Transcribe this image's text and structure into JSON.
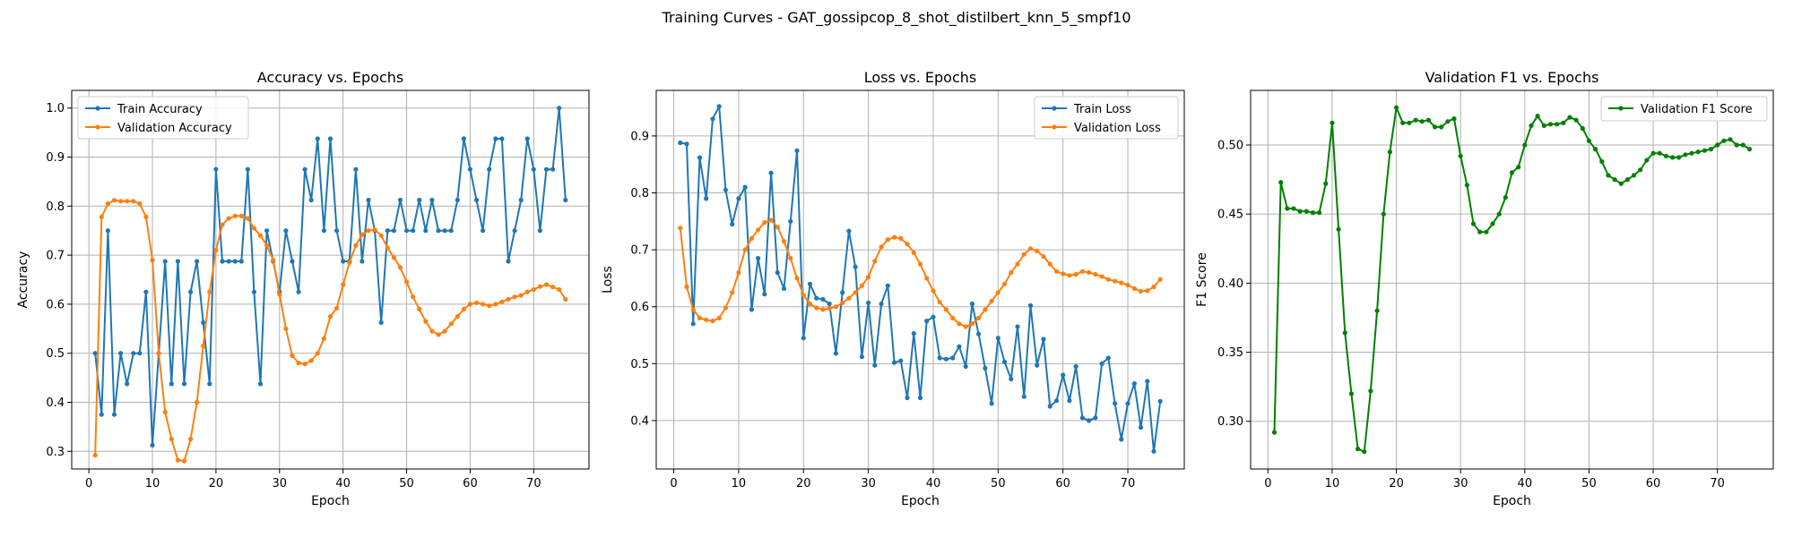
{
  "figure": {
    "suptitle": "Training Curves - GAT_gossipcop_8_shot_distilbert_knn_5_smpf10"
  },
  "chart_data": [
    {
      "type": "line",
      "title": "Accuracy vs. Epochs",
      "xlabel": "Epoch",
      "ylabel": "Accuracy",
      "xlim": [
        -2.7,
        78.7
      ],
      "ylim": [
        0.264,
        1.036
      ],
      "xticks": [
        0,
        10,
        20,
        30,
        40,
        50,
        60,
        70
      ],
      "yticks": [
        0.3,
        0.4,
        0.5,
        0.6,
        0.7,
        0.8,
        0.9,
        1.0
      ],
      "grid": true,
      "legend": "top-left",
      "x": [
        1,
        2,
        3,
        4,
        5,
        6,
        7,
        8,
        9,
        10,
        11,
        12,
        13,
        14,
        15,
        16,
        17,
        18,
        19,
        20,
        21,
        22,
        23,
        24,
        25,
        26,
        27,
        28,
        29,
        30,
        31,
        32,
        33,
        34,
        35,
        36,
        37,
        38,
        39,
        40,
        41,
        42,
        43,
        44,
        45,
        46,
        47,
        48,
        49,
        50,
        51,
        52,
        53,
        54,
        55,
        56,
        57,
        58,
        59,
        60,
        61,
        62,
        63,
        64,
        65,
        66,
        67,
        68,
        69,
        70,
        71,
        72,
        73,
        74,
        75
      ],
      "series": [
        {
          "name": "Train Accuracy",
          "color": "#1f77b4",
          "values": [
            0.5,
            0.375,
            0.75,
            0.375,
            0.5,
            0.4375,
            0.5,
            0.5,
            0.625,
            0.3125,
            0.5,
            0.6875,
            0.4375,
            0.6875,
            0.4375,
            0.625,
            0.6875,
            0.5625,
            0.4375,
            0.875,
            0.6875,
            0.6875,
            0.6875,
            0.6875,
            0.875,
            0.625,
            0.4375,
            0.75,
            0.6875,
            0.625,
            0.75,
            0.6875,
            0.625,
            0.875,
            0.8125,
            0.9375,
            0.75,
            0.9375,
            0.75,
            0.6875,
            0.6875,
            0.875,
            0.6875,
            0.8125,
            0.75,
            0.5625,
            0.75,
            0.75,
            0.8125,
            0.75,
            0.75,
            0.8125,
            0.75,
            0.8125,
            0.75,
            0.75,
            0.75,
            0.8125,
            0.9375,
            0.875,
            0.8125,
            0.75,
            0.875,
            0.9375,
            0.9375,
            0.6875,
            0.75,
            0.8125,
            0.9375,
            0.875,
            0.75,
            0.875,
            0.875,
            1.0,
            0.8125
          ]
        },
        {
          "name": "Validation Accuracy",
          "color": "#ff7f0e",
          "values": [
            0.292,
            0.778,
            0.805,
            0.812,
            0.81,
            0.81,
            0.81,
            0.805,
            0.778,
            0.69,
            0.5,
            0.38,
            0.325,
            0.282,
            0.28,
            0.325,
            0.4,
            0.515,
            0.625,
            0.71,
            0.762,
            0.775,
            0.78,
            0.78,
            0.775,
            0.755,
            0.74,
            0.72,
            0.69,
            0.62,
            0.55,
            0.495,
            0.48,
            0.478,
            0.485,
            0.5,
            0.53,
            0.575,
            0.592,
            0.64,
            0.685,
            0.72,
            0.742,
            0.75,
            0.752,
            0.74,
            0.715,
            0.695,
            0.675,
            0.645,
            0.615,
            0.59,
            0.565,
            0.545,
            0.538,
            0.545,
            0.56,
            0.575,
            0.59,
            0.6,
            0.603,
            0.6,
            0.597,
            0.6,
            0.605,
            0.61,
            0.615,
            0.618,
            0.625,
            0.63,
            0.636,
            0.64,
            0.635,
            0.63,
            0.61
          ]
        }
      ]
    },
    {
      "type": "line",
      "title": "Loss vs. Epochs",
      "xlabel": "Epoch",
      "ylabel": "Loss",
      "xlim": [
        -2.7,
        78.7
      ],
      "ylim": [
        0.315,
        0.98
      ],
      "xticks": [
        0,
        10,
        20,
        30,
        40,
        50,
        60,
        70
      ],
      "yticks": [
        0.4,
        0.5,
        0.6,
        0.7,
        0.8,
        0.9
      ],
      "grid": true,
      "legend": "top-right",
      "x": [
        1,
        2,
        3,
        4,
        5,
        6,
        7,
        8,
        9,
        10,
        11,
        12,
        13,
        14,
        15,
        16,
        17,
        18,
        19,
        20,
        21,
        22,
        23,
        24,
        25,
        26,
        27,
        28,
        29,
        30,
        31,
        32,
        33,
        34,
        35,
        36,
        37,
        38,
        39,
        40,
        41,
        42,
        43,
        44,
        45,
        46,
        47,
        48,
        49,
        50,
        51,
        52,
        53,
        54,
        55,
        56,
        57,
        58,
        59,
        60,
        61,
        62,
        63,
        64,
        65,
        66,
        67,
        68,
        69,
        70,
        71,
        72,
        73,
        74,
        75
      ],
      "series": [
        {
          "name": "Train Loss",
          "color": "#1f77b4",
          "values": [
            0.888,
            0.886,
            0.57,
            0.862,
            0.79,
            0.93,
            0.952,
            0.805,
            0.745,
            0.79,
            0.81,
            0.595,
            0.685,
            0.622,
            0.835,
            0.66,
            0.632,
            0.75,
            0.874,
            0.545,
            0.64,
            0.615,
            0.613,
            0.605,
            0.518,
            0.625,
            0.733,
            0.67,
            0.512,
            0.607,
            0.497,
            0.605,
            0.637,
            0.502,
            0.505,
            0.44,
            0.553,
            0.44,
            0.575,
            0.582,
            0.51,
            0.508,
            0.51,
            0.53,
            0.495,
            0.605,
            0.552,
            0.492,
            0.43,
            0.545,
            0.503,
            0.473,
            0.565,
            0.442,
            0.602,
            0.497,
            0.543,
            0.425,
            0.435,
            0.48,
            0.435,
            0.495,
            0.405,
            0.4,
            0.405,
            0.5,
            0.51,
            0.43,
            0.367,
            0.43,
            0.465,
            0.388,
            0.469,
            0.346,
            0.434
          ]
        },
        {
          "name": "Validation Loss",
          "color": "#ff7f0e",
          "values": [
            0.738,
            0.635,
            0.595,
            0.58,
            0.577,
            0.575,
            0.58,
            0.598,
            0.625,
            0.66,
            0.7,
            0.72,
            0.735,
            0.748,
            0.752,
            0.74,
            0.715,
            0.685,
            0.65,
            0.62,
            0.605,
            0.598,
            0.595,
            0.597,
            0.6,
            0.607,
            0.615,
            0.625,
            0.637,
            0.652,
            0.68,
            0.705,
            0.718,
            0.722,
            0.72,
            0.71,
            0.695,
            0.675,
            0.65,
            0.628,
            0.608,
            0.595,
            0.58,
            0.57,
            0.565,
            0.57,
            0.58,
            0.595,
            0.61,
            0.625,
            0.64,
            0.66,
            0.675,
            0.692,
            0.702,
            0.698,
            0.688,
            0.675,
            0.662,
            0.658,
            0.655,
            0.657,
            0.662,
            0.66,
            0.657,
            0.653,
            0.648,
            0.645,
            0.642,
            0.638,
            0.632,
            0.627,
            0.628,
            0.635,
            0.648
          ]
        }
      ]
    },
    {
      "type": "line",
      "title": "Validation F1 vs. Epochs",
      "xlabel": "Epoch",
      "ylabel": "F1 Score",
      "xlim": [
        -2.7,
        78.7
      ],
      "ylim": [
        0.2655,
        0.5395
      ],
      "xticks": [
        0,
        10,
        20,
        30,
        40,
        50,
        60,
        70
      ],
      "yticks": [
        0.3,
        0.35,
        0.4,
        0.45,
        0.5
      ],
      "grid": true,
      "legend": "top-right",
      "x": [
        1,
        2,
        3,
        4,
        5,
        6,
        7,
        8,
        9,
        10,
        11,
        12,
        13,
        14,
        15,
        16,
        17,
        18,
        19,
        20,
        21,
        22,
        23,
        24,
        25,
        26,
        27,
        28,
        29,
        30,
        31,
        32,
        33,
        34,
        35,
        36,
        37,
        38,
        39,
        40,
        41,
        42,
        43,
        44,
        45,
        46,
        47,
        48,
        49,
        50,
        51,
        52,
        53,
        54,
        55,
        56,
        57,
        58,
        59,
        60,
        61,
        62,
        63,
        64,
        65,
        66,
        67,
        68,
        69,
        70,
        71,
        72,
        73,
        74,
        75
      ],
      "series": [
        {
          "name": "Validation F1 Score",
          "color": "#008000",
          "values": [
            0.292,
            0.473,
            0.454,
            0.454,
            0.452,
            0.452,
            0.451,
            0.451,
            0.472,
            0.516,
            0.439,
            0.364,
            0.32,
            0.28,
            0.278,
            0.322,
            0.38,
            0.45,
            0.495,
            0.527,
            0.516,
            0.516,
            0.518,
            0.517,
            0.518,
            0.513,
            0.513,
            0.517,
            0.519,
            0.492,
            0.471,
            0.443,
            0.437,
            0.437,
            0.443,
            0.45,
            0.462,
            0.48,
            0.484,
            0.5,
            0.514,
            0.521,
            0.514,
            0.515,
            0.515,
            0.516,
            0.52,
            0.518,
            0.512,
            0.503,
            0.497,
            0.488,
            0.478,
            0.475,
            0.472,
            0.475,
            0.478,
            0.482,
            0.489,
            0.494,
            0.494,
            0.492,
            0.491,
            0.491,
            0.493,
            0.494,
            0.495,
            0.496,
            0.497,
            0.5,
            0.503,
            0.504,
            0.5,
            0.5,
            0.497
          ]
        }
      ]
    }
  ]
}
